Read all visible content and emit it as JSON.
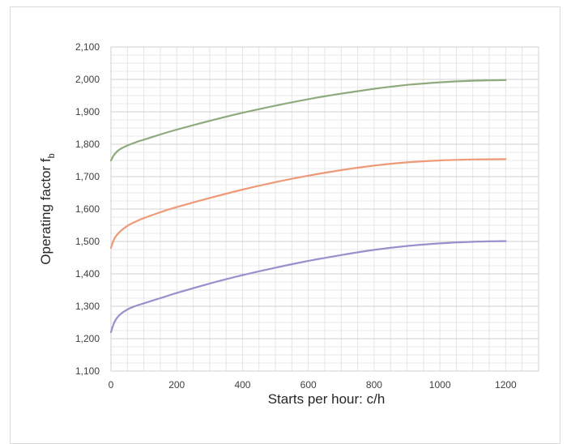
{
  "chart_data": {
    "type": "line",
    "title": "",
    "xlabel": "Starts per hour: c/h",
    "ylabel_main": "Operating factor f",
    "ylabel_subscript": "b",
    "xlim": [
      0,
      1300
    ],
    "ylim": [
      1100,
      2100
    ],
    "x_ticks": [
      0,
      200,
      400,
      600,
      800,
      1000,
      1200
    ],
    "x_tick_labels": [
      "0",
      "200",
      "400",
      "600",
      "800",
      "1000",
      "1200"
    ],
    "y_ticks": [
      1100,
      1200,
      1300,
      1400,
      1500,
      1600,
      1700,
      1800,
      1900,
      2000,
      2100
    ],
    "y_tick_labels": [
      "1,100",
      "1,200",
      "1,300",
      "1,400",
      "1,500",
      "1,600",
      "1,700",
      "1,800",
      "1,900",
      "2,000",
      "2,100"
    ],
    "grid": true,
    "x_minor_step": 50,
    "y_minor_step": 25,
    "legend": "none",
    "series": [
      {
        "color": "#8faa7c",
        "x": [
          0,
          10,
          25,
          50,
          75,
          100,
          150,
          200,
          300,
          400,
          500,
          600,
          700,
          800,
          900,
          1000,
          1100,
          1200
        ],
        "values": [
          1750,
          1768,
          1783,
          1796,
          1806,
          1814,
          1830,
          1845,
          1872,
          1897,
          1919,
          1939,
          1956,
          1971,
          1983,
          1991,
          1996,
          1998
        ]
      },
      {
        "color": "#ee9a78",
        "x": [
          0,
          10,
          25,
          50,
          75,
          100,
          150,
          200,
          300,
          400,
          500,
          600,
          700,
          800,
          900,
          1000,
          1100,
          1200
        ],
        "values": [
          1480,
          1508,
          1528,
          1548,
          1561,
          1572,
          1590,
          1606,
          1634,
          1660,
          1683,
          1703,
          1720,
          1734,
          1744,
          1750,
          1753,
          1754
        ]
      },
      {
        "color": "#9b8fcc",
        "x": [
          0,
          10,
          25,
          50,
          75,
          100,
          150,
          200,
          300,
          400,
          500,
          600,
          700,
          800,
          900,
          1000,
          1100,
          1200
        ],
        "values": [
          1220,
          1250,
          1272,
          1290,
          1301,
          1309,
          1325,
          1341,
          1370,
          1396,
          1419,
          1440,
          1458,
          1474,
          1486,
          1494,
          1499,
          1501
        ]
      }
    ]
  }
}
